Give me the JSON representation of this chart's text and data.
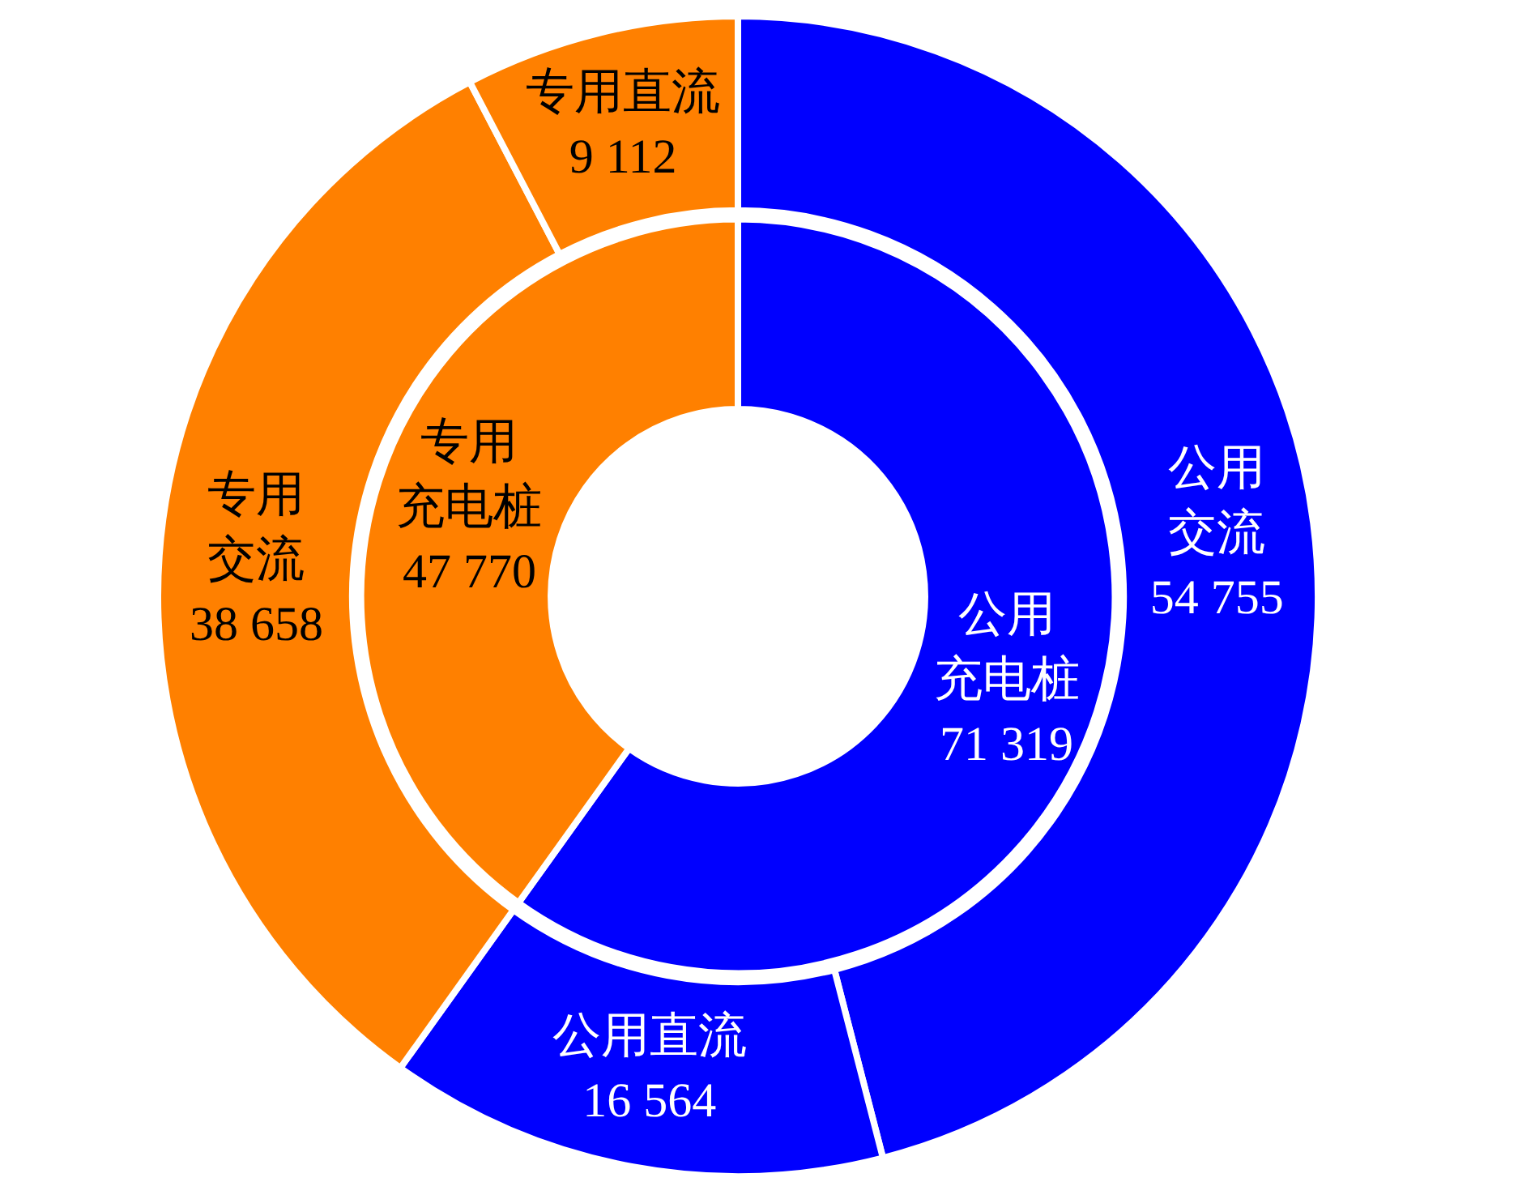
{
  "chart_data": [
    {
      "type": "donut",
      "categories": [
        "公用充电桩",
        "专用充电桩"
      ],
      "values": [
        71319,
        47770
      ],
      "value_labels": [
        "71 319",
        "47 770"
      ],
      "colors": [
        "#0000ff",
        "#ff8000"
      ]
    },
    {
      "type": "donut",
      "categories": [
        "公用交流",
        "公用直流",
        "专用交流",
        "专用直流"
      ],
      "values": [
        54755,
        16564,
        38658,
        9112
      ],
      "value_labels": [
        "54 755",
        "16 564",
        "38 658",
        "9 112"
      ],
      "colors": [
        "#0000ff",
        "#0000ff",
        "#ff8000",
        "#ff8000"
      ],
      "legend": false
    }
  ]
}
